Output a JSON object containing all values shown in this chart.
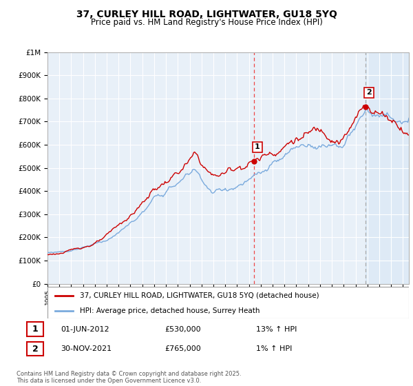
{
  "title": "37, CURLEY HILL ROAD, LIGHTWATER, GU18 5YQ",
  "subtitle": "Price paid vs. HM Land Registry's House Price Index (HPI)",
  "legend_line1": "37, CURLEY HILL ROAD, LIGHTWATER, GU18 5YQ (detached house)",
  "legend_line2": "HPI: Average price, detached house, Surrey Heath",
  "annotation1_date": "01-JUN-2012",
  "annotation1_price": "£530,000",
  "annotation1_hpi": "13% ↑ HPI",
  "annotation2_date": "30-NOV-2021",
  "annotation2_price": "£765,000",
  "annotation2_hpi": "1% ↑ HPI",
  "footnote": "Contains HM Land Registry data © Crown copyright and database right 2025.\nThis data is licensed under the Open Government Licence v3.0.",
  "red_color": "#cc0000",
  "blue_color": "#7aaadd",
  "vline1_color": "#ee4444",
  "vline2_color": "#aaaaaa",
  "shade_color": "#ddeeff",
  "background_color": "#ffffff",
  "plot_bg_color": "#e8f0f8",
  "grid_color": "#ffffff",
  "ylim": [
    0,
    1000000
  ],
  "xlim_start": 1995,
  "xlim_end": 2025.5
}
